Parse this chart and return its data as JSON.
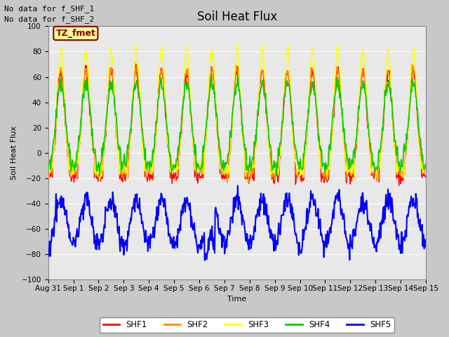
{
  "title": "Soil Heat Flux",
  "ylabel": "Soil Heat Flux",
  "xlabel": "Time",
  "annotations": [
    "No data for f_SHF_1",
    "No data for f_SHF_2"
  ],
  "legend_label": "TZ_fmet",
  "legend_bg": "#FFFF99",
  "legend_border": "#8B0000",
  "ylim": [
    -100,
    100
  ],
  "yticks": [
    -100,
    -80,
    -60,
    -40,
    -20,
    0,
    20,
    40,
    60,
    80,
    100
  ],
  "series_colors": {
    "SHF1": "#FF0000",
    "SHF2": "#FF8C00",
    "SHF3": "#FFFF00",
    "SHF4": "#00CC00",
    "SHF5": "#0000FF"
  },
  "series_linewidths": {
    "SHF1": 1.0,
    "SHF2": 1.0,
    "SHF3": 1.0,
    "SHF4": 1.2,
    "SHF5": 1.5
  },
  "tick_labels": [
    "Aug 31",
    "Sep 1",
    "Sep 2",
    "Sep 3",
    "Sep 4",
    "Sep 5",
    "Sep 6",
    "Sep 7",
    "Sep 8",
    "Sep 9",
    "Sep 10",
    "Sep 11",
    "Sep 12",
    "Sep 13",
    "Sep 14",
    "Sep 15"
  ],
  "background_color": "#E8E8E8",
  "grid_color": "#FFFFFF",
  "fig_bg": "#C8C8C8",
  "title_fontsize": 12,
  "axis_label_fontsize": 8,
  "tick_fontsize": 7.5,
  "annotation_fontsize": 8
}
